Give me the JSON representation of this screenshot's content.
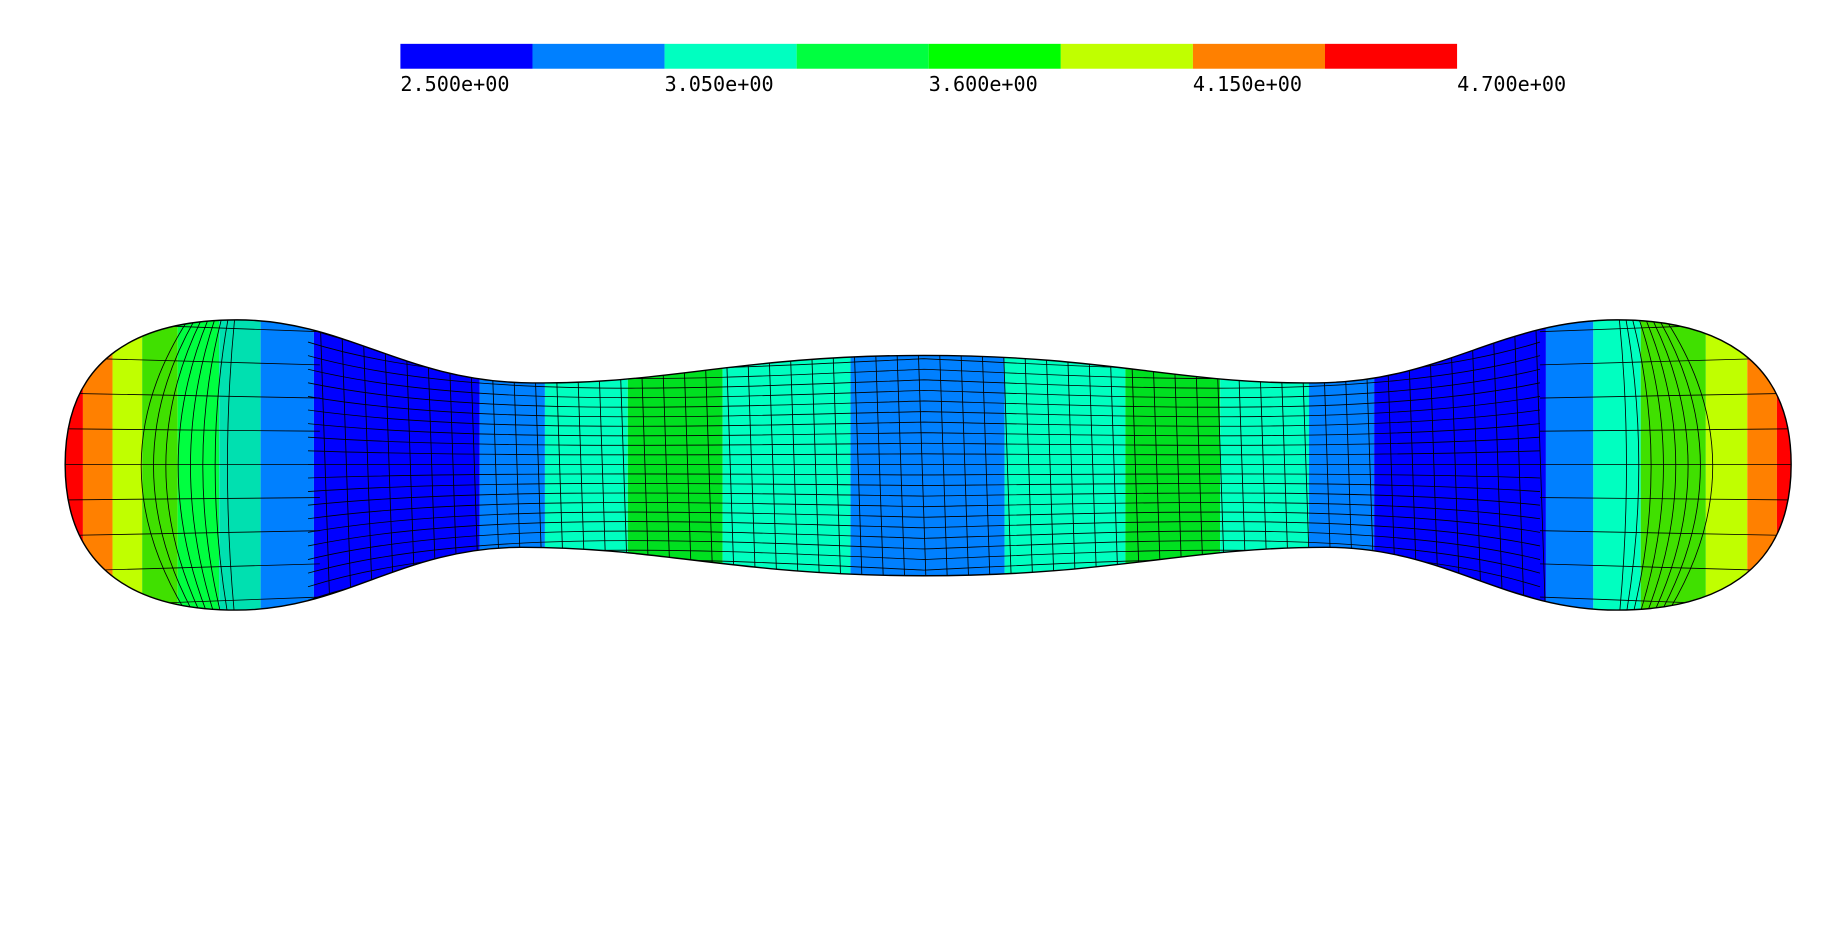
{
  "chart_data": {
    "type": "colorbar",
    "bins": [
      2.5,
      2.775,
      3.05,
      3.325,
      3.6,
      3.875,
      4.15,
      4.425,
      4.7
    ],
    "colors": [
      "#0000ff",
      "#0080ff",
      "#00ffc0",
      "#00ff40",
      "#00ff00",
      "#c0ff00",
      "#ff8000",
      "#ff0000"
    ],
    "xlim": [
      2.5,
      4.7
    ],
    "xticks": [
      {
        "value": 2.5,
        "label": "2.500e+00"
      },
      {
        "value": 3.05,
        "label": "3.050e+00"
      },
      {
        "value": 3.6,
        "label": "3.600e+00"
      },
      {
        "value": 4.15,
        "label": "4.150e+00"
      },
      {
        "value": 4.7,
        "label": "4.700e+00"
      }
    ]
  }
}
